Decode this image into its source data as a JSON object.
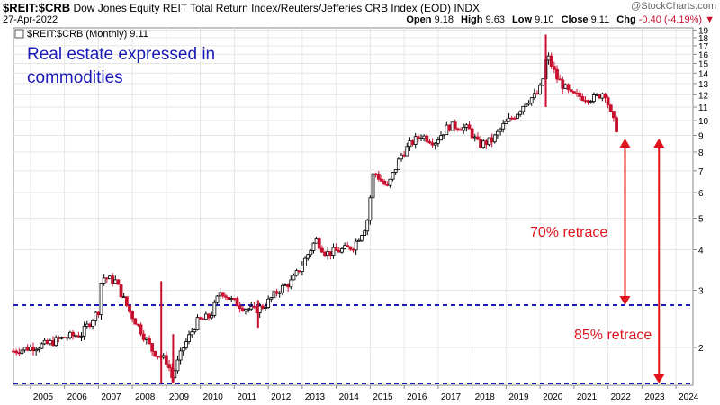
{
  "header": {
    "symbol": "$REIT:$CRB",
    "description": "Dow Jones Equity REIT Total Return Index/Reuters/Jefferies CRB Index (EOD)",
    "exchange": "INDX",
    "date": "27-Apr-2022",
    "brand": "@StockCharts.com",
    "open_label": "Open",
    "open": "9.18",
    "high_label": "High",
    "high": "9.63",
    "low_label": "Low",
    "low": "9.10",
    "close_label": "Close",
    "close": "9.11",
    "chg_label": "Chg",
    "chg": "-0.40 (-4.19%)",
    "chg_arrow": "▼"
  },
  "chart_data": {
    "type": "candlestick",
    "legend": "$REIT:$CRB (Monthly) 9.11",
    "yscale": "log",
    "ylim": [
      1.53,
      19.3
    ],
    "xlim": [
      2004.5,
      2024.5
    ],
    "ytick_labels": [
      "2",
      "3",
      "4",
      "5",
      "6",
      "7",
      "8",
      "9",
      "10",
      "11",
      "12",
      "13",
      "14",
      "15",
      "16",
      "17",
      "18",
      "19"
    ],
    "ytick_values": [
      2,
      3,
      4,
      5,
      6,
      7,
      8,
      9,
      10,
      11,
      12,
      13,
      14,
      15,
      16,
      17,
      18,
      19
    ],
    "xtick_labels": [
      "2005",
      "2006",
      "2007",
      "2008",
      "2009",
      "2010",
      "2011",
      "2012",
      "2013",
      "2014",
      "2015",
      "2016",
      "2017",
      "2018",
      "2019",
      "2020",
      "2021",
      "2022",
      "2023",
      "2024"
    ],
    "xtick_values": [
      2005,
      2006,
      2007,
      2008,
      2009,
      2010,
      2011,
      2012,
      2013,
      2014,
      2015,
      2016,
      2017,
      2018,
      2019,
      2020,
      2021,
      2022,
      2023,
      2024
    ],
    "series_anchors": [
      [
        2004.5,
        1.95
      ],
      [
        2005.5,
        2.05
      ],
      [
        2006.0,
        2.15
      ],
      [
        2006.5,
        2.2
      ],
      [
        2007.0,
        2.6
      ],
      [
        2007.1,
        3.3
      ],
      [
        2007.5,
        3.2
      ],
      [
        2007.9,
        2.6
      ],
      [
        2008.2,
        2.3
      ],
      [
        2008.6,
        1.95
      ],
      [
        2008.9,
        1.85
      ],
      [
        2009.05,
        1.8
      ],
      [
        2009.15,
        1.6
      ],
      [
        2009.5,
        2.0
      ],
      [
        2009.9,
        2.4
      ],
      [
        2010.3,
        2.5
      ],
      [
        2010.6,
        3.0
      ],
      [
        2010.9,
        2.8
      ],
      [
        2011.3,
        2.65
      ],
      [
        2011.6,
        2.6
      ],
      [
        2011.9,
        2.7
      ],
      [
        2012.3,
        3.0
      ],
      [
        2012.7,
        3.2
      ],
      [
        2013.0,
        3.6
      ],
      [
        2013.4,
        4.3
      ],
      [
        2013.7,
        3.9
      ],
      [
        2014.2,
        4.0
      ],
      [
        2014.5,
        4.1
      ],
      [
        2014.9,
        4.8
      ],
      [
        2015.1,
        7.0
      ],
      [
        2015.5,
        6.2
      ],
      [
        2015.9,
        7.8
      ],
      [
        2016.2,
        8.5
      ],
      [
        2016.5,
        9.0
      ],
      [
        2016.9,
        8.6
      ],
      [
        2017.3,
        9.6
      ],
      [
        2017.6,
        9.6
      ],
      [
        2017.9,
        9.4
      ],
      [
        2018.2,
        8.4
      ],
      [
        2018.6,
        8.7
      ],
      [
        2018.9,
        9.6
      ],
      [
        2019.3,
        10.5
      ],
      [
        2019.6,
        11.5
      ],
      [
        2019.9,
        12.0
      ],
      [
        2020.05,
        12.8
      ],
      [
        2020.2,
        16.0
      ],
      [
        2020.5,
        13.5
      ],
      [
        2020.9,
        12.0
      ],
      [
        2021.3,
        11.8
      ],
      [
        2021.6,
        11.7
      ],
      [
        2021.9,
        12.3
      ],
      [
        2022.1,
        10.3
      ],
      [
        2022.32,
        9.11
      ]
    ],
    "spikes": [
      {
        "x": 2008.85,
        "high": 3.2,
        "low": 1.55
      },
      {
        "x": 2009.2,
        "high": 2.2,
        "low": 1.55
      },
      {
        "x": 2020.17,
        "high": 18.4,
        "low": 11.0
      },
      {
        "x": 2011.7,
        "high": 2.8,
        "low": 2.3
      }
    ],
    "annotations": [
      {
        "text": "Real estate expressed in commodities"
      },
      {
        "text": "70% retrace"
      },
      {
        "text": "85% retrace"
      }
    ],
    "ref_lines": [
      {
        "y": 2.7,
        "label": "70% retrace level"
      },
      {
        "y": 1.55,
        "label": "85% retrace level"
      }
    ],
    "arrows": [
      {
        "x": 2022.5,
        "y_from": 8.8,
        "y_to": 2.7
      },
      {
        "x": 2023.5,
        "y_from": 8.8,
        "y_to": 1.55
      }
    ],
    "colors": {
      "up": "#000000",
      "down": "#c8102e",
      "ref_line": "#1a1ab8",
      "annotation_blue": "#1a1ab8",
      "annotation_red": "#e0141c",
      "grid": "#e6e6e6",
      "background": "#ffffff"
    },
    "grid": true
  }
}
